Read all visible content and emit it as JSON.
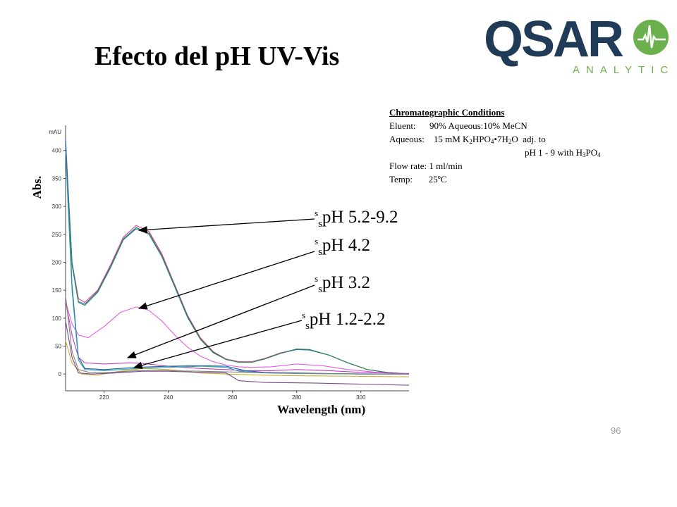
{
  "title": "Efecto del pH UV-Vis",
  "logo": {
    "text_main": "QSAR",
    "text_sub": "ANALYTICS",
    "brand_color": "#1f3b57",
    "accent_color": "#6ab04c"
  },
  "conditions": {
    "heading": "Chromatographic Conditions",
    "eluent_label": "Eluent:",
    "eluent_value": "90% Aqueous:10% MeCN",
    "aqueous_label": "Aqueous:",
    "aqueous_value_a": "15 mM K",
    "aqueous_value_b": "HPO",
    "aqueous_value_c": "•7H",
    "aqueous_value_d": "O  adj. to",
    "aqueous_line2_a": "pH 1 - 9 with H",
    "aqueous_line2_b": "PO",
    "sub_2": "2",
    "sub_4": "4",
    "sub_3": "3",
    "flow_label": "Flow rate:",
    "flow_value": "1 ml/min",
    "temp_label": "Temp:",
    "temp_value": "25ºC"
  },
  "labels": [
    {
      "pre": "s",
      "pre2": "s",
      "text": "pH 5.2-9.2"
    },
    {
      "pre": "s",
      "pre2": "s",
      "text": "pH 4.2"
    },
    {
      "pre": "s",
      "pre2": "s",
      "text": "pH 3.2"
    },
    {
      "pre": "s",
      "pre2": "s",
      "text": "pH 1.2-2.2"
    }
  ],
  "page_number": "96",
  "chart_data": {
    "type": "line",
    "xlabel": "Wavelength (nm)",
    "ylabel": "Abs.",
    "yunit": "mAU",
    "xlim": [
      208,
      315
    ],
    "ylim": [
      -30,
      445
    ],
    "xticks": [
      220,
      240,
      260,
      280,
      300
    ],
    "yticks": [
      0,
      50,
      100,
      150,
      200,
      250,
      300,
      350,
      400
    ],
    "series": [
      {
        "color": "#e0407a",
        "points": [
          [
            208,
            420
          ],
          [
            210,
            200
          ],
          [
            212,
            135
          ],
          [
            214,
            128
          ],
          [
            218,
            150
          ],
          [
            222,
            195
          ],
          [
            226,
            245
          ],
          [
            230,
            266
          ],
          [
            234,
            255
          ],
          [
            238,
            215
          ],
          [
            242,
            160
          ],
          [
            246,
            105
          ],
          [
            250,
            65
          ],
          [
            254,
            40
          ],
          [
            258,
            27
          ],
          [
            262,
            22
          ],
          [
            266,
            22
          ],
          [
            270,
            28
          ],
          [
            275,
            38
          ],
          [
            280,
            44
          ],
          [
            284,
            43
          ],
          [
            290,
            34
          ],
          [
            296,
            20
          ],
          [
            302,
            8
          ],
          [
            308,
            3
          ],
          [
            315,
            0
          ]
        ]
      },
      {
        "color": "#2a6db5",
        "points": [
          [
            208,
            415
          ],
          [
            210,
            200
          ],
          [
            212,
            130
          ],
          [
            214,
            125
          ],
          [
            218,
            148
          ],
          [
            222,
            192
          ],
          [
            226,
            242
          ],
          [
            230,
            262
          ],
          [
            234,
            252
          ],
          [
            238,
            212
          ],
          [
            242,
            158
          ],
          [
            246,
            103
          ],
          [
            250,
            63
          ],
          [
            254,
            39
          ],
          [
            258,
            26
          ],
          [
            262,
            21
          ],
          [
            266,
            21
          ],
          [
            270,
            27
          ],
          [
            275,
            37
          ],
          [
            280,
            44
          ],
          [
            284,
            43
          ],
          [
            290,
            34
          ],
          [
            296,
            20
          ],
          [
            302,
            8
          ],
          [
            308,
            3
          ],
          [
            315,
            0
          ]
        ]
      },
      {
        "color": "#2e8b57",
        "points": [
          [
            208,
            410
          ],
          [
            210,
            195
          ],
          [
            212,
            128
          ],
          [
            214,
            123
          ],
          [
            218,
            146
          ],
          [
            222,
            190
          ],
          [
            226,
            240
          ],
          [
            230,
            260
          ],
          [
            234,
            250
          ],
          [
            238,
            210
          ],
          [
            242,
            156
          ],
          [
            246,
            101
          ],
          [
            250,
            62
          ],
          [
            254,
            38
          ],
          [
            258,
            26
          ],
          [
            262,
            21
          ],
          [
            266,
            21
          ],
          [
            270,
            27
          ],
          [
            275,
            37
          ],
          [
            280,
            45
          ],
          [
            284,
            44
          ],
          [
            290,
            34
          ],
          [
            296,
            20
          ],
          [
            302,
            8
          ],
          [
            308,
            3
          ],
          [
            315,
            0
          ]
        ]
      },
      {
        "color": "#e060e0",
        "points": [
          [
            208,
            130
          ],
          [
            210,
            90
          ],
          [
            212,
            70
          ],
          [
            215,
            65
          ],
          [
            220,
            85
          ],
          [
            225,
            110
          ],
          [
            230,
            120
          ],
          [
            234,
            114
          ],
          [
            238,
            95
          ],
          [
            242,
            70
          ],
          [
            246,
            48
          ],
          [
            250,
            32
          ],
          [
            254,
            22
          ],
          [
            258,
            16
          ],
          [
            262,
            13
          ],
          [
            266,
            12
          ],
          [
            272,
            13
          ],
          [
            280,
            18
          ],
          [
            288,
            15
          ],
          [
            296,
            8
          ],
          [
            305,
            3
          ],
          [
            315,
            0
          ]
        ]
      },
      {
        "color": "#c040c0",
        "points": [
          [
            208,
            130
          ],
          [
            210,
            70
          ],
          [
            212,
            30
          ],
          [
            214,
            20
          ],
          [
            220,
            18
          ],
          [
            228,
            20
          ],
          [
            232,
            19
          ],
          [
            240,
            14
          ],
          [
            250,
            10
          ],
          [
            258,
            8
          ],
          [
            264,
            6
          ],
          [
            272,
            6
          ],
          [
            280,
            8
          ],
          [
            290,
            6
          ],
          [
            300,
            3
          ],
          [
            315,
            1
          ]
        ]
      },
      {
        "color": "#2060b0",
        "points": [
          [
            208,
            420
          ],
          [
            210,
            160
          ],
          [
            212,
            30
          ],
          [
            214,
            10
          ],
          [
            220,
            8
          ],
          [
            230,
            12
          ],
          [
            240,
            14
          ],
          [
            250,
            15
          ],
          [
            258,
            14
          ],
          [
            264,
            6
          ],
          [
            270,
            3
          ],
          [
            280,
            2
          ],
          [
            290,
            1
          ],
          [
            300,
            0
          ],
          [
            315,
            0
          ]
        ]
      },
      {
        "color": "#30a0a0",
        "points": [
          [
            208,
            400
          ],
          [
            210,
            150
          ],
          [
            212,
            25
          ],
          [
            214,
            8
          ],
          [
            220,
            6
          ],
          [
            230,
            10
          ],
          [
            240,
            12
          ],
          [
            250,
            14
          ],
          [
            258,
            12
          ],
          [
            262,
            5
          ],
          [
            270,
            2
          ],
          [
            280,
            1
          ],
          [
            300,
            0
          ],
          [
            315,
            0
          ]
        ]
      },
      {
        "color": "#c8b030",
        "points": [
          [
            208,
            60
          ],
          [
            210,
            20
          ],
          [
            213,
            0
          ],
          [
            218,
            -2
          ],
          [
            225,
            5
          ],
          [
            232,
            10
          ],
          [
            240,
            8
          ],
          [
            250,
            2
          ],
          [
            258,
            0
          ],
          [
            270,
            -2
          ],
          [
            280,
            -3
          ],
          [
            300,
            -4
          ],
          [
            315,
            -5
          ]
        ]
      },
      {
        "color": "#808080",
        "points": [
          [
            208,
            140
          ],
          [
            210,
            40
          ],
          [
            212,
            8
          ],
          [
            216,
            2
          ],
          [
            222,
            3
          ],
          [
            230,
            6
          ],
          [
            240,
            6
          ],
          [
            250,
            5
          ],
          [
            258,
            4
          ],
          [
            264,
            3
          ],
          [
            272,
            2
          ],
          [
            285,
            1
          ],
          [
            315,
            0
          ]
        ]
      },
      {
        "color": "#7a4a8a",
        "points": [
          [
            208,
            95
          ],
          [
            210,
            30
          ],
          [
            212,
            2
          ],
          [
            216,
            0
          ],
          [
            224,
            2
          ],
          [
            232,
            5
          ],
          [
            240,
            5
          ],
          [
            250,
            3
          ],
          [
            258,
            2
          ],
          [
            262,
            -12
          ],
          [
            270,
            -15
          ],
          [
            285,
            -16
          ],
          [
            300,
            -18
          ],
          [
            315,
            -20
          ]
        ]
      }
    ]
  }
}
